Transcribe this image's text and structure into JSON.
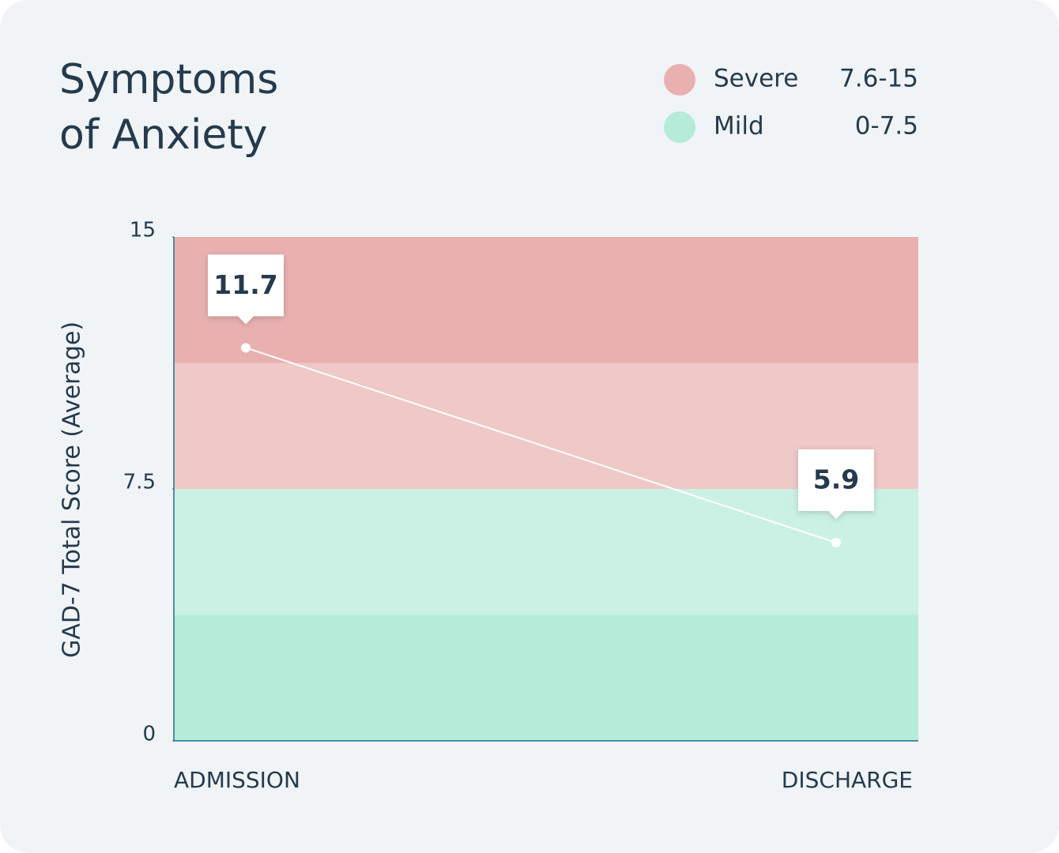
{
  "chart_data": {
    "type": "line",
    "title": "Symptoms of Anxiety",
    "y_label": "GAD-7 Total Score (Average)",
    "categories": [
      "ADMISSION",
      "DISCHARGE"
    ],
    "values": [
      11.7,
      5.9
    ],
    "line_color": "#ffffff",
    "ylim": [
      0,
      15
    ],
    "yticks": [
      0,
      7.5,
      15
    ],
    "bands": [
      {
        "name": "Severe",
        "range": "7.6-15",
        "color": "#e9b0b0"
      },
      {
        "name": "Mild",
        "range": "0-7.5",
        "color": "#b5ebd8"
      }
    ]
  }
}
